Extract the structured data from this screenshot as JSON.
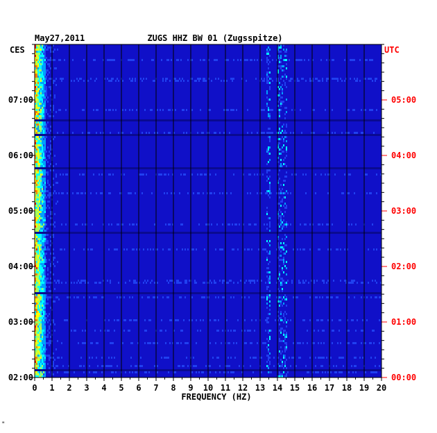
{
  "chart_data": {
    "type": "heatmap",
    "title": "ZUGS HHZ BW 01 (Zugsspitze)",
    "date_label": "May27,2011",
    "left_axis_title": "CES",
    "right_axis_title": "UTC",
    "xlabel": "FREQUENCY (HZ)",
    "xlim": [
      0,
      20
    ],
    "x_ticks": [
      "0",
      "1",
      "2",
      "3",
      "4",
      "5",
      "6",
      "7",
      "8",
      "9",
      "10",
      "11",
      "12",
      "13",
      "14",
      "15",
      "16",
      "17",
      "18",
      "19",
      "20"
    ],
    "y_ticks_left": [
      "07:00",
      "06:00",
      "05:00",
      "04:00",
      "03:00",
      "02:00"
    ],
    "y_ticks_right": [
      "05:00",
      "04:00",
      "03:00",
      "02:00",
      "01:00",
      "00:00"
    ],
    "tick_hours_from_bottom": [
      5,
      4,
      3,
      2,
      1,
      0
    ],
    "hours_span": 6,
    "grid": true,
    "colors": {
      "background": "#1010c8",
      "grid": "#000000",
      "utc": "#ff0000",
      "text": "#000000",
      "palette": [
        "#1818d0",
        "#2040f0",
        "#00a0ff",
        "#00ffff",
        "#a0ff60",
        "#ffff00",
        "#ff8000",
        "#ff0000"
      ]
    },
    "features": [
      {
        "freq": [
          0.0,
          0.6
        ],
        "intensity": "high",
        "note": "low-frequency energy band"
      },
      {
        "freq": [
          13.3,
          13.6
        ],
        "intensity": "medium"
      },
      {
        "freq": [
          14.0,
          14.5
        ],
        "intensity": "medium"
      }
    ]
  },
  "footer_mark": "\""
}
